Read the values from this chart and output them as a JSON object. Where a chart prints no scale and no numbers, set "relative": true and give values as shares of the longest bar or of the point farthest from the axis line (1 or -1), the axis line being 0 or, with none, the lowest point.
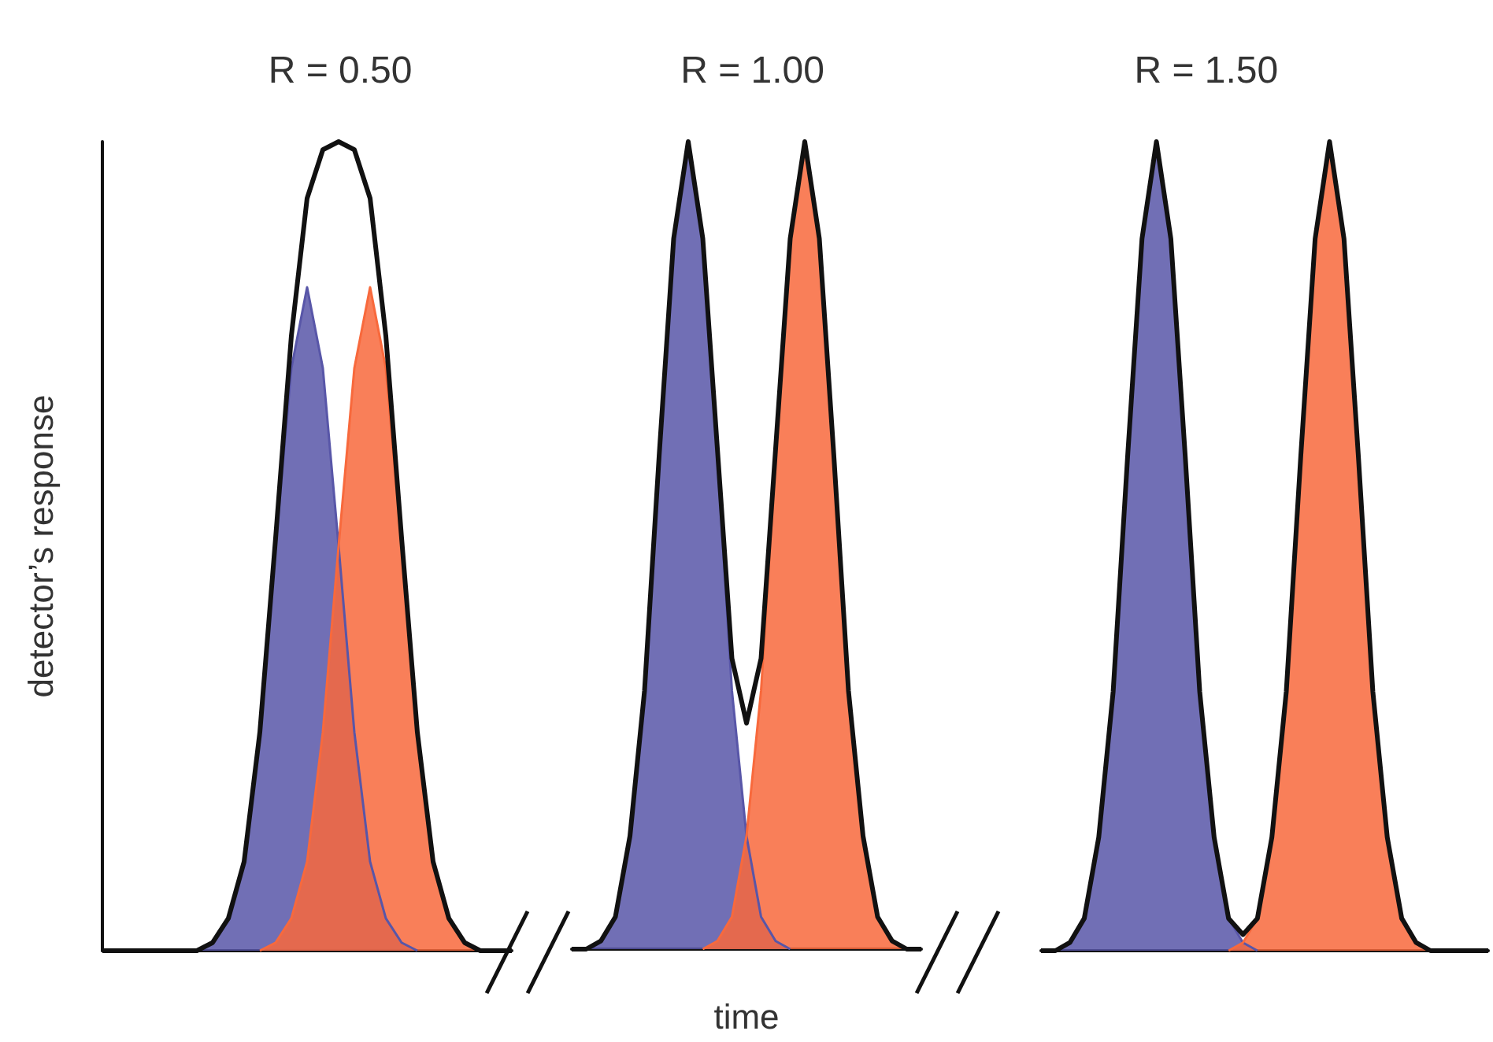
{
  "chart_data": [
    {
      "type": "area",
      "title": "R = 0.50",
      "ylabel": "detector’s response",
      "relative": true,
      "grid": false,
      "marker": "none",
      "categories": [
        null,
        null,
        null,
        null,
        null,
        null,
        null,
        null,
        null,
        null,
        null,
        null,
        null,
        null,
        null,
        null,
        null,
        null,
        null,
        null,
        null,
        null,
        null,
        null,
        null,
        null,
        null
      ],
      "series": [
        {
          "color": "#5856a8",
          "values": [
            null,
            null,
            null,
            null,
            null,
            null,
            0,
            0.01,
            0.04,
            0.11,
            0.27,
            0.5,
            0.72,
            0.82,
            0.72,
            0.5,
            0.27,
            0.11,
            0.04,
            0.01,
            0,
            null,
            null,
            null,
            null,
            null,
            null
          ]
        },
        {
          "color": "#f8693c",
          "values": [
            null,
            null,
            null,
            null,
            null,
            null,
            null,
            null,
            null,
            null,
            0,
            0.01,
            0.04,
            0.11,
            0.27,
            0.5,
            0.72,
            0.82,
            0.72,
            0.5,
            0.27,
            0.11,
            0.04,
            0.01,
            0,
            null,
            null
          ]
        },
        {
          "type": "line",
          "color": "#111111",
          "values": [
            0,
            0,
            0,
            0,
            0,
            0,
            0,
            0.01,
            0.04,
            0.11,
            0.27,
            0.51,
            0.76,
            0.93,
            0.99,
            1,
            0.99,
            0.93,
            0.76,
            0.51,
            0.27,
            0.11,
            0.04,
            0.01,
            0,
            0,
            0
          ]
        }
      ]
    },
    {
      "type": "area",
      "title": "R = 1.00",
      "xlabel": "time",
      "relative": true,
      "grid": false,
      "marker": "none",
      "categories": [
        null,
        null,
        null,
        null,
        null,
        null,
        null,
        null,
        null,
        null,
        null,
        null,
        null,
        null,
        null,
        null,
        null,
        null,
        null,
        null,
        null,
        null,
        null,
        null,
        null
      ],
      "series": [
        {
          "color": "#5856a8",
          "values": [
            null,
            0,
            0.01,
            0.04,
            0.14,
            0.32,
            0.61,
            0.88,
            1,
            0.88,
            0.61,
            0.32,
            0.14,
            0.04,
            0.01,
            0,
            null,
            null,
            null,
            null,
            null,
            null,
            null,
            null,
            null
          ]
        },
        {
          "color": "#f8693c",
          "values": [
            null,
            null,
            null,
            null,
            null,
            null,
            null,
            null,
            null,
            0,
            0.01,
            0.04,
            0.14,
            0.32,
            0.61,
            0.88,
            1,
            0.88,
            0.61,
            0.32,
            0.14,
            0.04,
            0.01,
            0,
            null
          ]
        },
        {
          "type": "line",
          "color": "#111111",
          "values": [
            0,
            0,
            0.01,
            0.04,
            0.14,
            0.32,
            0.61,
            0.88,
            1,
            0.88,
            0.62,
            0.36,
            0.28,
            0.36,
            0.62,
            0.88,
            1,
            0.88,
            0.61,
            0.32,
            0.14,
            0.04,
            0.01,
            0,
            0
          ]
        }
      ]
    },
    {
      "type": "area",
      "title": "R = 1.50",
      "relative": true,
      "grid": false,
      "marker": "none",
      "categories": [
        null,
        null,
        null,
        null,
        null,
        null,
        null,
        null,
        null,
        null,
        null,
        null,
        null,
        null,
        null,
        null,
        null,
        null,
        null,
        null,
        null,
        null,
        null,
        null,
        null,
        null,
        null,
        null,
        null,
        null,
        null,
        null
      ],
      "series": [
        {
          "color": "#5856a8",
          "values": [
            null,
            0,
            0.01,
            0.04,
            0.14,
            0.32,
            0.61,
            0.88,
            1,
            0.88,
            0.61,
            0.32,
            0.14,
            0.04,
            0.01,
            0,
            null,
            null,
            null,
            null,
            null,
            null,
            null,
            null,
            null,
            null,
            null,
            null,
            null,
            null,
            null,
            null
          ]
        },
        {
          "color": "#f8693c",
          "values": [
            null,
            null,
            null,
            null,
            null,
            null,
            null,
            null,
            null,
            null,
            null,
            null,
            null,
            0,
            0.01,
            0.04,
            0.14,
            0.32,
            0.61,
            0.88,
            1,
            0.88,
            0.61,
            0.32,
            0.14,
            0.04,
            0.01,
            0,
            null,
            null,
            null,
            null
          ]
        },
        {
          "type": "line",
          "color": "#111111",
          "values": [
            0,
            0,
            0.01,
            0.04,
            0.14,
            0.32,
            0.61,
            0.88,
            1,
            0.88,
            0.61,
            0.32,
            0.14,
            0.04,
            0.02,
            0.04,
            0.14,
            0.32,
            0.61,
            0.88,
            1,
            0.88,
            0.61,
            0.32,
            0.14,
            0.04,
            0.01,
            0,
            0,
            0,
            0,
            0
          ]
        }
      ]
    }
  ]
}
